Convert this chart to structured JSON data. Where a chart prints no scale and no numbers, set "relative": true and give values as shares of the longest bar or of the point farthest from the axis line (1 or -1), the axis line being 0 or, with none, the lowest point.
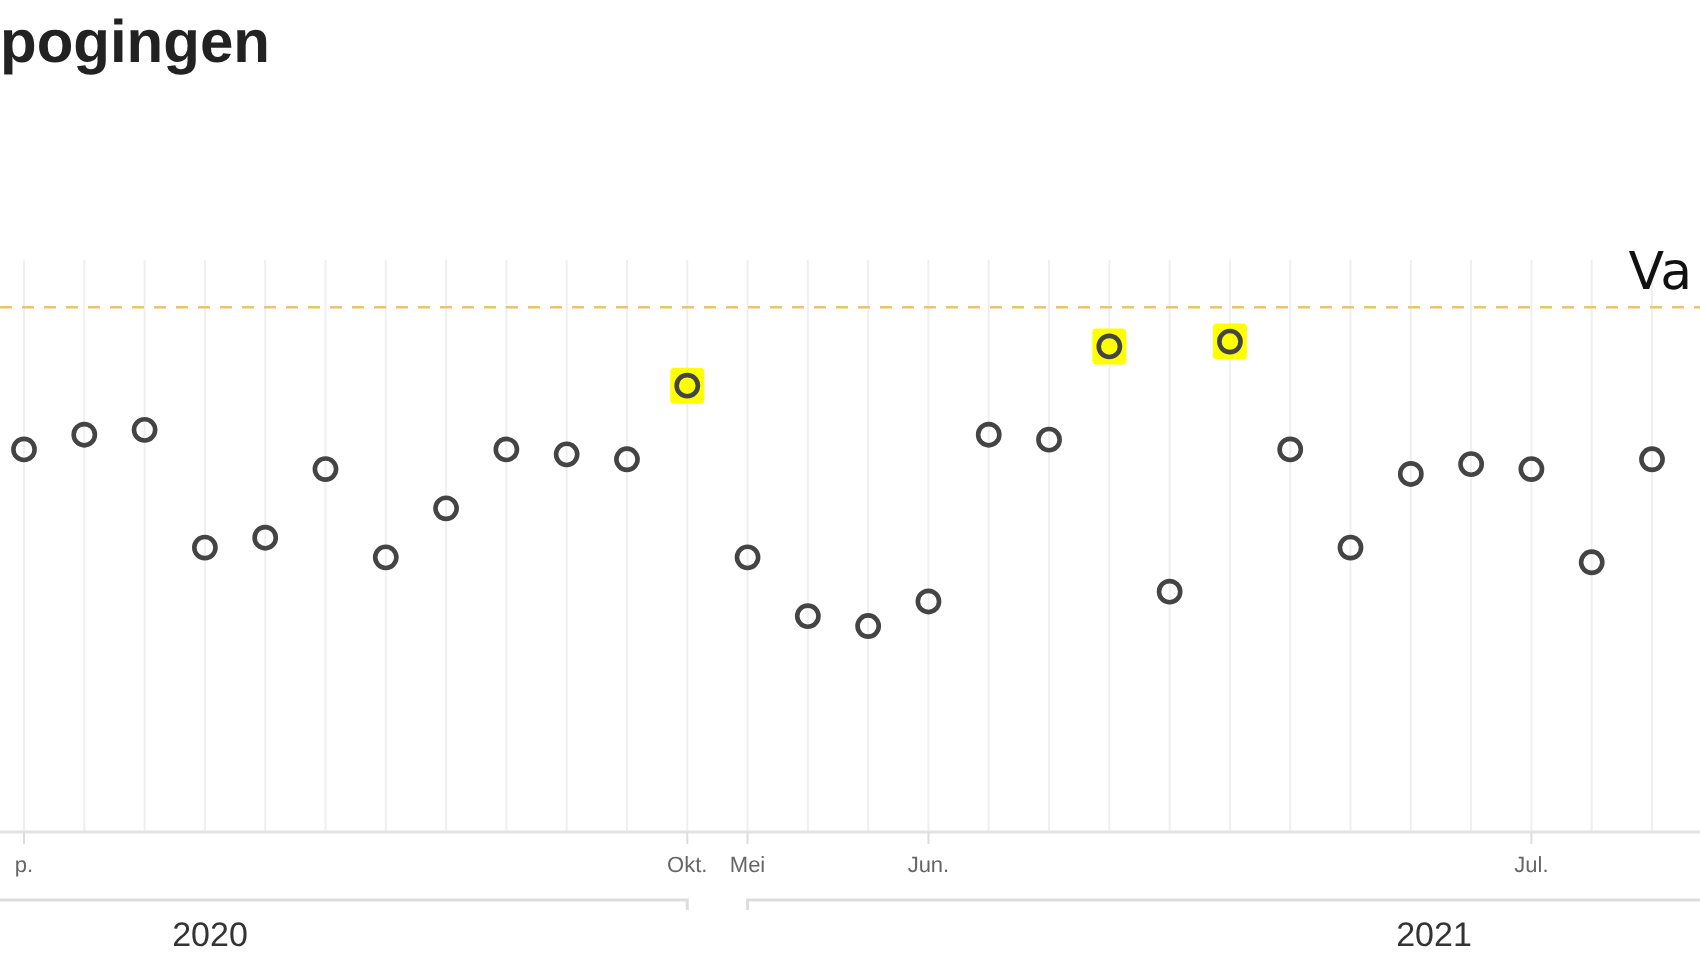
{
  "chart_data": {
    "type": "scatter",
    "title": "pogingen",
    "relative": true,
    "categories": [
      "p.",
      null,
      null,
      null,
      null,
      null,
      null,
      null,
      null,
      null,
      null,
      "Okt.",
      "Mei",
      null,
      null,
      "Jun.",
      null,
      null,
      null,
      null,
      null,
      null,
      null,
      null,
      null,
      "Jul.",
      null,
      null
    ],
    "series": [
      {
        "color": "#ffff00",
        "marker": "square",
        "values": [
          null,
          null,
          null,
          null,
          null,
          null,
          null,
          null,
          null,
          null,
          null,
          0.91,
          null,
          null,
          null,
          null,
          null,
          null,
          0.99,
          null,
          1,
          null,
          null,
          null,
          null,
          null,
          null,
          null
        ]
      },
      {
        "color": "#444444",
        "marker": "circle",
        "values": [
          0.78,
          0.81,
          0.82,
          0.58,
          0.6,
          0.74,
          0.56,
          0.66,
          0.78,
          0.77,
          0.76,
          0.91,
          0.56,
          0.44,
          0.42,
          0.47,
          0.81,
          0.8,
          0.99,
          0.49,
          1,
          0.78,
          0.58,
          0.73,
          0.75,
          0.74,
          0.55,
          0.76
        ]
      }
    ],
    "ref_lines": [
      {
        "axis": "y",
        "value": 1.07,
        "label": "Va",
        "color": "#e8c46e",
        "line_style": "dashed"
      }
    ],
    "annotations": [
      "2020",
      "2021"
    ],
    "grid": "x",
    "tick_labels": "x"
  }
}
